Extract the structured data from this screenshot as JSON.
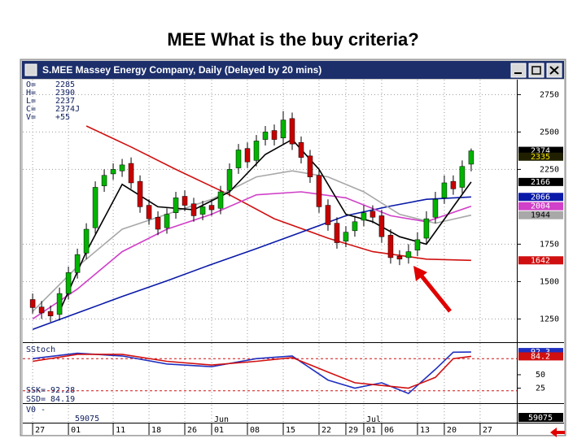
{
  "slide_title": "MEE What is the buy criteria?",
  "window_title": "S.MEE   Massey Energy Company, Daily (Delayed by 20 mins)",
  "chart_data": {
    "type": "candlestick",
    "readout": [
      {
        "label": "O=",
        "value": 2285
      },
      {
        "label": "H=",
        "value": 2390
      },
      {
        "label": "L=",
        "value": 2237
      },
      {
        "label": "C=",
        "value": "2374J"
      },
      {
        "label": "V=",
        "value": "+55"
      }
    ],
    "xlim": [
      -1.1,
      54.1
    ],
    "ylim": [
      1100,
      2850
    ],
    "yticks": [
      1250,
      1500,
      1750,
      2250,
      2500,
      2750
    ],
    "xticks": [
      {
        "value": 0,
        "label": "27"
      },
      {
        "value": 4,
        "label": "01"
      },
      {
        "value": 9,
        "label": "11"
      },
      {
        "value": 13,
        "label": "18"
      },
      {
        "value": 17,
        "label": "26"
      },
      {
        "value": 20,
        "label": "01"
      },
      {
        "value": 24,
        "label": "08"
      },
      {
        "value": 28,
        "label": "15"
      },
      {
        "value": 32,
        "label": "22"
      },
      {
        "value": 35,
        "label": "29"
      },
      {
        "value": 37,
        "label": "01"
      },
      {
        "value": 39,
        "label": "06"
      },
      {
        "value": 43,
        "label": "13"
      },
      {
        "value": 46,
        "label": "20"
      },
      {
        "value": 50,
        "label": "27"
      }
    ],
    "months": [
      {
        "value": 20,
        "label": "Jun"
      },
      {
        "value": 37,
        "label": "Jul"
      }
    ],
    "grid": true,
    "up_color": "#00b400",
    "down_color": "#c80000",
    "open": [
      1380,
      1330,
      1300,
      1280,
      1420,
      1560,
      1690,
      1860,
      2140,
      2220,
      2240,
      2290,
      2170,
      2010,
      1930,
      1860,
      1960,
      2070,
      2020,
      1950,
      2010,
      1990,
      2110,
      2260,
      2390,
      2310,
      2450,
      2510,
      2460,
      2590,
      2430,
      2340,
      2210,
      2010,
      1890,
      1770,
      1840,
      1910,
      1970,
      1940,
      1810,
      1670,
      1660,
      1710,
      1790,
      1930,
      2060,
      2170,
      2130,
      2285
    ],
    "high": [
      1420,
      1370,
      1340,
      1460,
      1600,
      1720,
      1890,
      2170,
      2250,
      2290,
      2320,
      2330,
      2210,
      2050,
      1970,
      1990,
      2100,
      2110,
      2060,
      2040,
      2050,
      2140,
      2290,
      2420,
      2430,
      2480,
      2540,
      2550,
      2640,
      2630,
      2470,
      2380,
      2250,
      2050,
      1930,
      1870,
      1940,
      2010,
      2010,
      1980,
      1850,
      1710,
      1750,
      1830,
      1970,
      2100,
      2210,
      2210,
      2310,
      2390
    ],
    "low": [
      1286,
      1250,
      1230,
      1240,
      1380,
      1520,
      1650,
      1820,
      2100,
      2180,
      2200,
      2120,
      1960,
      1880,
      1810,
      1820,
      1920,
      1970,
      1900,
      1910,
      1940,
      1950,
      2070,
      2220,
      2260,
      2270,
      2410,
      2410,
      2420,
      2380,
      2290,
      2160,
      1960,
      1840,
      1720,
      1730,
      1800,
      1870,
      1890,
      1760,
      1620,
      1610,
      1620,
      1670,
      1750,
      1890,
      2020,
      2080,
      2090,
      2237
    ],
    "close": [
      1326,
      1290,
      1270,
      1420,
      1560,
      1680,
      1850,
      2130,
      2210,
      2250,
      2280,
      2160,
      2000,
      1920,
      1850,
      1950,
      2060,
      2010,
      1940,
      2000,
      1980,
      2100,
      2250,
      2380,
      2300,
      2440,
      2500,
      2450,
      2580,
      2420,
      2330,
      2200,
      2000,
      1880,
      1760,
      1830,
      1900,
      1960,
      1930,
      1800,
      1660,
      1650,
      1700,
      1780,
      1920,
      2050,
      2160,
      2120,
      2270,
      2374
    ],
    "lines": [
      {
        "color": "#d01010",
        "x": [
          6,
          11,
          16,
          22,
          27,
          33,
          38,
          44,
          49
        ],
        "values": [
          2540,
          2400,
          2250,
          2080,
          1920,
          1790,
          1700,
          1650,
          1642
        ]
      },
      {
        "color": "#0a1aa8",
        "x": [
          0,
          5,
          10,
          15,
          20,
          25,
          30,
          35,
          40,
          44,
          49
        ],
        "values": [
          1180,
          1290,
          1400,
          1505,
          1615,
          1720,
          1830,
          1940,
          2005,
          2050,
          2066
        ]
      },
      {
        "color": "#a8a8a8",
        "x": [
          0,
          5,
          10,
          15,
          20,
          25,
          29,
          33,
          37,
          41,
          45,
          49
        ],
        "values": [
          1300,
          1600,
          1850,
          1950,
          2050,
          2200,
          2240,
          2200,
          2100,
          1950,
          1890,
          1944
        ]
      },
      {
        "color": "#d040c8",
        "x": [
          0,
          5,
          10,
          15,
          20,
          25,
          30,
          35,
          40,
          44,
          49
        ],
        "values": [
          1250,
          1450,
          1700,
          1850,
          1950,
          2080,
          2100,
          2060,
          1940,
          1900,
          2004
        ]
      },
      {
        "color": "#000000",
        "x": [
          3,
          6,
          10,
          14,
          18,
          22,
          26,
          29,
          32,
          35,
          38,
          41,
          44,
          47,
          49
        ],
        "values": [
          1300,
          1700,
          2150,
          2000,
          1980,
          2100,
          2350,
          2450,
          2250,
          1950,
          1900,
          1800,
          1750,
          2000,
          2166
        ]
      }
    ],
    "tags": [
      {
        "value": 2374,
        "bg": "#000000",
        "fg": "#ffffff"
      },
      {
        "value": 2335,
        "bg": "#202000",
        "fg": "#f0e000"
      },
      {
        "value": 2166,
        "bg": "#000000",
        "fg": "#ffffff"
      },
      {
        "value": 2066,
        "bg": "#0a1aa8",
        "fg": "#ffffff"
      },
      {
        "value": 2004,
        "bg": "#d040c8",
        "fg": "#ffffff"
      },
      {
        "value": 1944,
        "bg": "#a8a8a8",
        "fg": "#000000"
      },
      {
        "value": 1642,
        "bg": "#d01010",
        "fg": "#ffffff"
      }
    ],
    "stochastic": {
      "title": "SStoch",
      "ylim": [
        0,
        100
      ],
      "yticks": [
        25,
        50
      ],
      "levels": [
        80,
        20
      ],
      "lines": [
        {
          "color": "#2030c0",
          "x": [
            0,
            5,
            10,
            15,
            20,
            25,
            29,
            33,
            36,
            39,
            42,
            45,
            47,
            49
          ],
          "values": [
            80,
            90,
            85,
            70,
            65,
            80,
            85,
            40,
            25,
            35,
            15,
            60,
            92,
            92.28
          ]
        },
        {
          "color": "#d01010",
          "x": [
            0,
            5,
            10,
            15,
            20,
            25,
            29,
            33,
            36,
            39,
            42,
            45,
            47,
            49
          ],
          "values": [
            75,
            88,
            88,
            75,
            68,
            75,
            82,
            55,
            35,
            30,
            25,
            45,
            80,
            84.19
          ]
        }
      ],
      "readout": [
        {
          "label": "SSK=",
          "value": 92.28
        },
        {
          "label": "SSD=",
          "value": 84.19
        }
      ],
      "tags": [
        {
          "value": 92.3,
          "bg": "#2030c0",
          "fg": "#ffffff"
        },
        {
          "value": 84.2,
          "bg": "#d01010",
          "fg": "#ffffff"
        }
      ]
    },
    "volume": {
      "label": "V0  -",
      "value": 59075,
      "tag": 59075
    }
  }
}
